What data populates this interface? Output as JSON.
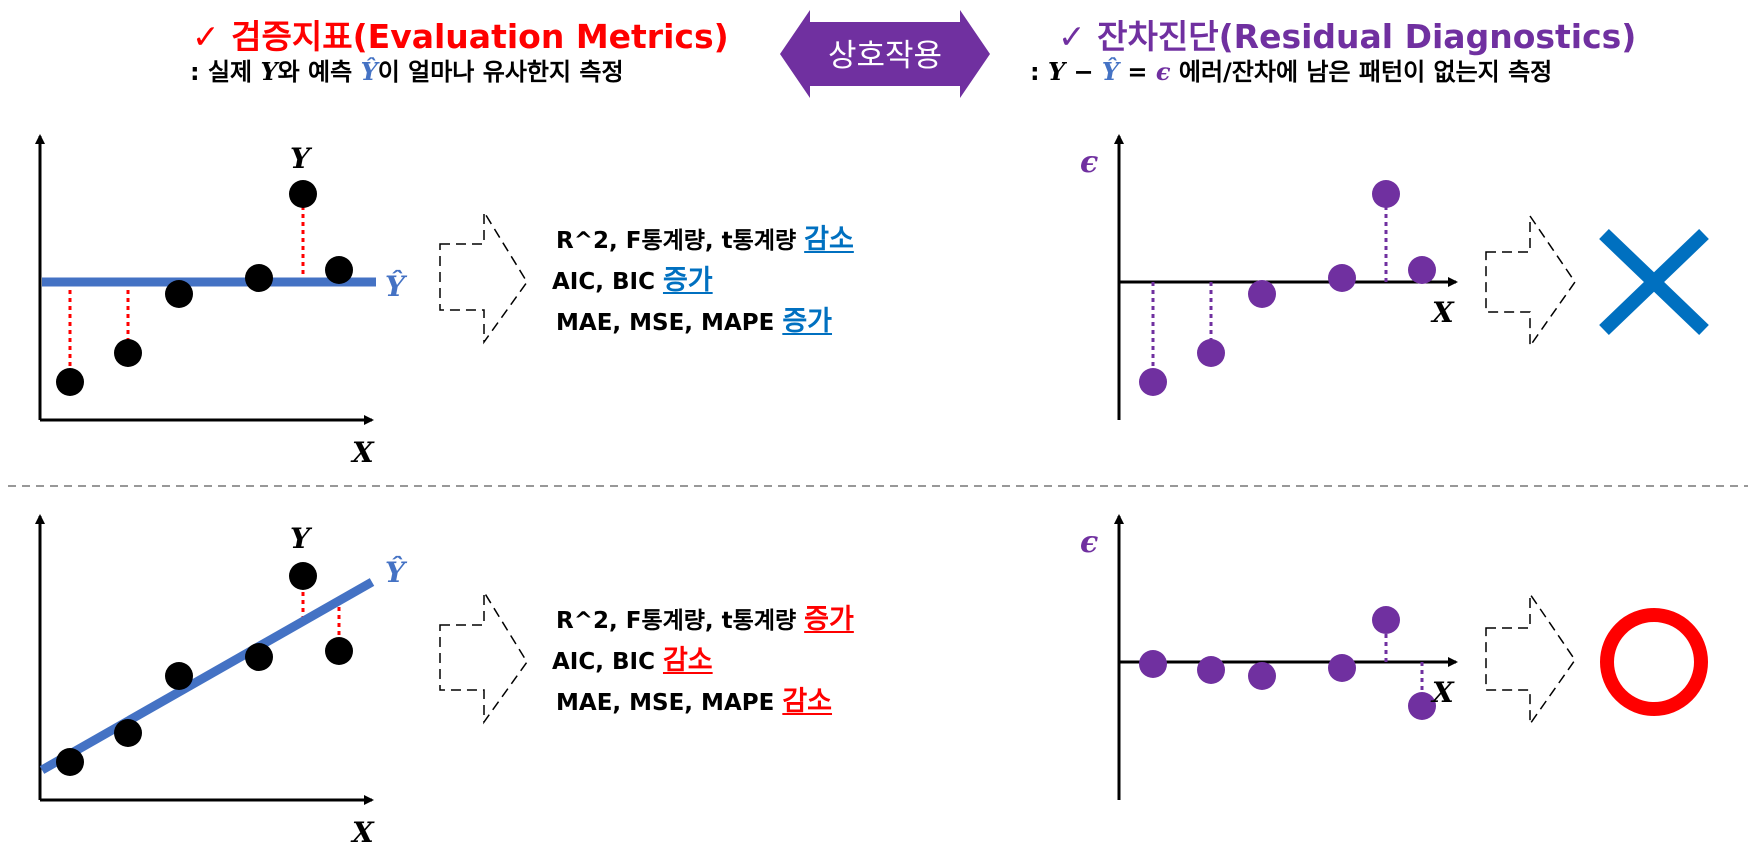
{
  "header": {
    "left_check": "✓",
    "left_title": "검증지표(Evaluation Metrics)",
    "left_sub_prefix": ": 실제 ",
    "left_sub_y": "Y",
    "left_sub_mid": "와 예측 ",
    "left_sub_yhat": "Ŷ",
    "left_sub_suffix": "이 얼마나 유사한지 측정",
    "center_label": "상호작용",
    "right_check": "✓",
    "right_title": "잔차진단(Residual Diagnostics)",
    "right_sub_prefix": ": ",
    "right_sub_y": "Y",
    "right_sub_minus": " − ",
    "right_sub_yhat": "Ŷ",
    "right_sub_eq": " = ",
    "right_sub_eps": "ϵ",
    "right_sub_suffix": " 에러/잔차에 남은 패턴이 없는지 측정"
  },
  "colors": {
    "red": "#ff0000",
    "purple": "#7030a0",
    "blue": "#0070c0",
    "line_blue": "#4472c4",
    "black": "#000000"
  },
  "rows": [
    {
      "metrics": [
        {
          "text": "R^2, F통계량, t통계량 ",
          "word": "감소"
        },
        {
          "text": "AIC, BIC ",
          "word": "증가"
        },
        {
          "text": "MAE, MSE, MAPE ",
          "word": "증가"
        }
      ],
      "word_color": "#0070c0",
      "verdict": "✕",
      "verdict_icon": "cross-icon"
    },
    {
      "metrics": [
        {
          "text": "R^2, F통계량, t통계량 ",
          "word": "증가"
        },
        {
          "text": "AIC, BIC ",
          "word": "감소"
        },
        {
          "text": "MAE, MSE, MAPE ",
          "word": "감소"
        }
      ],
      "word_color": "#ff0000",
      "verdict": "○",
      "verdict_icon": "circle-icon"
    }
  ],
  "axis_labels": {
    "x": "X",
    "y": "Y",
    "yhat": "Ŷ",
    "eps": "ϵ"
  }
}
